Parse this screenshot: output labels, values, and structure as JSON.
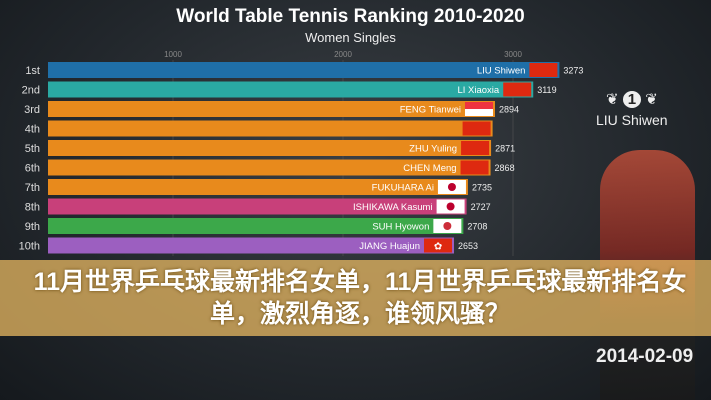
{
  "chart_data": {
    "type": "bar",
    "orientation": "horizontal",
    "title": "World Table Tennis Ranking 2010-2020",
    "subtitle": "Women Singles",
    "xticks": [
      1000,
      2000,
      3000
    ],
    "xlim": [
      0,
      3500
    ],
    "categories": [
      "1st",
      "2nd",
      "3rd",
      "4th",
      "5th",
      "6th",
      "7th",
      "8th",
      "9th",
      "10th"
    ],
    "names": [
      "LIU Shiwen",
      "LI Xiaoxia",
      "FENG Tianwei",
      "",
      "ZHU Yuling",
      "CHEN Meng",
      "FUKUHARA Ai",
      "ISHIKAWA Kasumi",
      "SUH Hyowon",
      "JIANG Huajun"
    ],
    "value_labels": [
      "3273",
      "3119",
      "2894",
      "",
      "2871",
      "2868",
      "2735",
      "2727",
      "2708",
      "2653"
    ],
    "values": [
      3273,
      3119,
      2894,
      2880,
      2871,
      2868,
      2735,
      2727,
      2708,
      2653
    ],
    "flags": [
      "china",
      "china",
      "singapore",
      "china",
      "china",
      "china",
      "japan",
      "japan",
      "korea",
      "hongkong"
    ],
    "colors": [
      "#1f6fa8",
      "#2aa9a3",
      "#e88a1c",
      "#e88a1c",
      "#e88a1c",
      "#e88a1c",
      "#e88a1c",
      "#c8407a",
      "#3ca84a",
      "#9c5fc0"
    ]
  },
  "highlight": {
    "player": "LIU Shiwen",
    "rank_badge": "1",
    "date": "2014-02-09"
  },
  "headline": "11月世界乒乓球最新排名女单，11月世界乒乓球最新排名女单，激烈角逐，谁领风骚？"
}
